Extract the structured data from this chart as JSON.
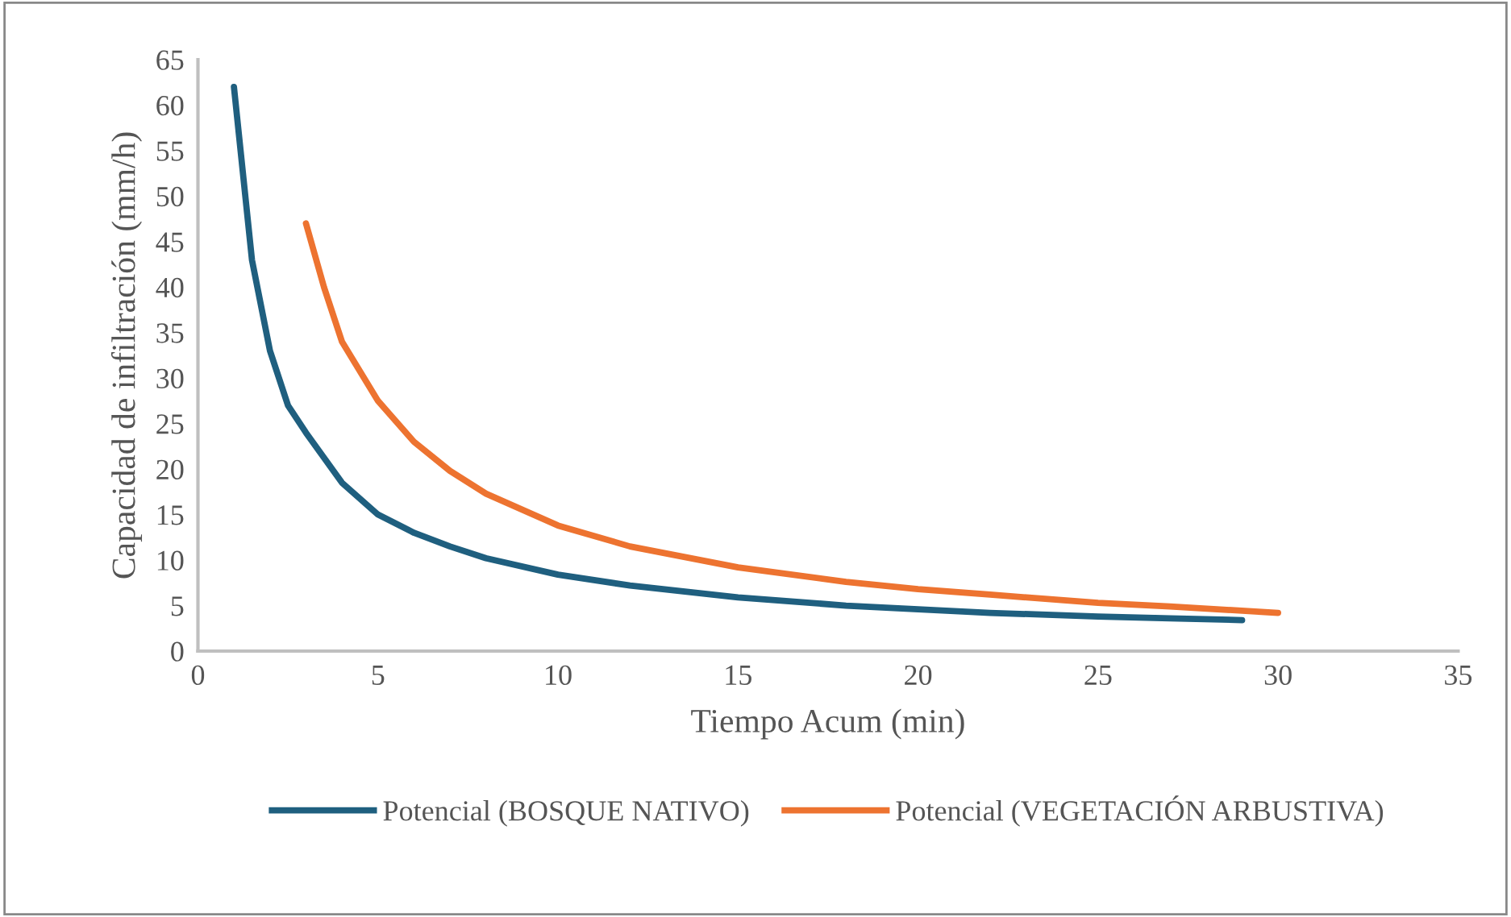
{
  "chart_data": {
    "type": "line",
    "xlabel": "Tiempo Acum (min)",
    "ylabel": "Capacidad de infiltración (mm/h)",
    "xlim": [
      0,
      35
    ],
    "xticks": [
      0,
      5,
      10,
      15,
      20,
      25,
      30,
      35
    ],
    "ylim": [
      0,
      65
    ],
    "yticks": [
      0,
      5,
      10,
      15,
      20,
      25,
      30,
      35,
      40,
      45,
      50,
      55,
      60,
      65
    ],
    "grid": false,
    "legend": "bottom",
    "marker": "none",
    "line_style": "solid",
    "series": [
      {
        "name": "Potencial (BOSQUE NATIVO)",
        "color": "#1f5f7f",
        "x": [
          1,
          1.5,
          2,
          2.5,
          3,
          4,
          5,
          6,
          7,
          8,
          10,
          12,
          15,
          18,
          20,
          22,
          25,
          27,
          29
        ],
        "values": [
          62,
          43,
          33,
          27,
          24,
          18.5,
          15,
          13,
          11.5,
          10.2,
          8.4,
          7.2,
          5.9,
          5,
          4.6,
          4.2,
          3.8,
          3.6,
          3.4
        ]
      },
      {
        "name": "Potencial (VEGETACIÓN ARBUSTIVA)",
        "color": "#ed7330",
        "x": [
          3,
          3.5,
          4,
          5,
          6,
          7,
          8,
          10,
          12,
          15,
          18,
          20,
          22,
          25,
          27,
          30
        ],
        "values": [
          47,
          40,
          34,
          27.5,
          23,
          19.8,
          17.3,
          13.8,
          11.5,
          9.2,
          7.6,
          6.8,
          6.2,
          5.3,
          4.9,
          4.2
        ]
      }
    ]
  }
}
